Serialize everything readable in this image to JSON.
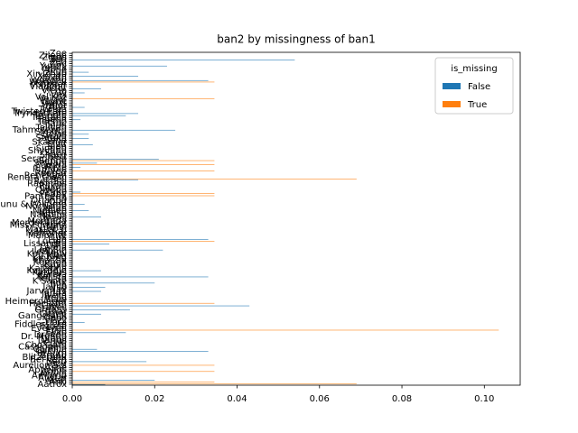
{
  "chart_data": {
    "type": "barh",
    "title": "ban2 by missingness of ban1",
    "categories": [
      "Aatrox",
      "Ahri",
      "Akali",
      "Alistar",
      "Amumu",
      "Anivia",
      "Annie",
      "Aphelios",
      "Ashe",
      "Aurelion Sol",
      "Azir",
      "Bard",
      "Bel'Veth",
      "Blitzcrank",
      "Brand",
      "Braum",
      "Caitlyn",
      "Camille",
      "Cassiopeia",
      "Cho'Gath",
      "Corki",
      "Darius",
      "Diana",
      "Dr. Mundo",
      "Draven",
      "Ekko",
      "Elise",
      "Evelynn",
      "Ezreal",
      "Fiddlesticks",
      "Fiora",
      "Fizz",
      "Galio",
      "Gangplank",
      "Garen",
      "Gnar",
      "Gragas",
      "Graves",
      "Gwen",
      "Hecarim",
      "Heimerdinger",
      "Illaoi",
      "Irelia",
      "Ivern",
      "Janna",
      "Jarvan IV",
      "Jax",
      "Jayce",
      "Jhin",
      "Jinx",
      "K'Sante",
      "Kai'Sa",
      "Kalista",
      "Karma",
      "Karthus",
      "Kassadin",
      "Katarina",
      "Kayle",
      "Kayn",
      "Kennen",
      "Kha'Zix",
      "Kindred",
      "Kled",
      "Kog'Maw",
      "LeBlanc",
      "Lee Sin",
      "Leona",
      "Lillia",
      "Lissandra",
      "Lucian",
      "Lulu",
      "Lux",
      "Malphite",
      "Malzahar",
      "Maokai",
      "Master Yi",
      "Milio",
      "Miss Fortune",
      "Mordekaiser",
      "Morgana",
      "Nami",
      "Nasus",
      "Nautilus",
      "Neeko",
      "Nidalee",
      "Nilah",
      "Nocturne",
      "Nunu & Willump",
      "Olaf",
      "Orianna",
      "Ornn",
      "Pantheon",
      "Poppy",
      "Pyke",
      "Qiyana",
      "Quinn",
      "Rakan",
      "Rammus",
      "Rek'Sai",
      "Rell",
      "Renata Glasc",
      "Renekton",
      "Rengar",
      "Riven",
      "Rumble",
      "Ryze",
      "Samira",
      "Sejuani",
      "Senna",
      "Seraphine",
      "Sett",
      "Shaco",
      "Shen",
      "Shyvana",
      "Singed",
      "Sion",
      "Sivir",
      "Skarner",
      "Sona",
      "Soraka",
      "Swain",
      "Sylas",
      "Syndra",
      "Tahm Kench",
      "Taliyah",
      "Talon",
      "Taric",
      "Teemo",
      "Thresh",
      "Tristana",
      "Trundle",
      "Tryndamere",
      "Twisted Fate",
      "Twitch",
      "Udyr",
      "Urgot",
      "Varus",
      "Vayne",
      "Veigar",
      "Vel'Koz",
      "Vex",
      "Vi",
      "Viego",
      "Viktor",
      "Vladimir",
      "Volibear",
      "Warwick",
      "Wukong",
      "Xayah",
      "Xerath",
      "Xin Zhao",
      "Yasuo",
      "Yone",
      "Yorick",
      "Yuumi",
      "Zac",
      "Zed",
      "Zeri",
      "Ziggs",
      "Zilean",
      "Zoe"
    ],
    "series": [
      {
        "name": "False",
        "color": "#1f77b4",
        "values": [
          0.008,
          0,
          0.02,
          0,
          0,
          0,
          0,
          0,
          0,
          0,
          0,
          0.018,
          0,
          0,
          0,
          0,
          0.033,
          0.006,
          0,
          0,
          0,
          0,
          0,
          0,
          0,
          0.013,
          0,
          0,
          0,
          0,
          0.003,
          0,
          0,
          0,
          0.007,
          0,
          0.014,
          0,
          0.043,
          0,
          0,
          0,
          0,
          0,
          0,
          0.007,
          0,
          0.008,
          0,
          0.02,
          0,
          0,
          0.033,
          0,
          0,
          0.007,
          0,
          0,
          0,
          0,
          0,
          0,
          0,
          0,
          0,
          0.022,
          0,
          0,
          0.009,
          0,
          0.033,
          0,
          0,
          0,
          0,
          0,
          0,
          0,
          0,
          0,
          0,
          0.007,
          0,
          0,
          0.004,
          0,
          0,
          0.003,
          0,
          0,
          0,
          0,
          0,
          0.002,
          0,
          0,
          0,
          0,
          0,
          0.016,
          0,
          0,
          0,
          0,
          0,
          0.002,
          0,
          0.006,
          0,
          0.021,
          0,
          0,
          0,
          0,
          0,
          0,
          0.005,
          0,
          0,
          0.004,
          0,
          0.004,
          0,
          0.025,
          0,
          0,
          0,
          0,
          0.002,
          0,
          0.013,
          0.016,
          0,
          0,
          0.003,
          0,
          0,
          0,
          0,
          0,
          0,
          0.003,
          0,
          0.007,
          0,
          0,
          0,
          0.033,
          0,
          0.016,
          0,
          0.004,
          0,
          0,
          0.023,
          0,
          0,
          0.054,
          0,
          0,
          0
        ]
      },
      {
        "name": "True",
        "color": "#ff7f0e",
        "values": [
          0.069,
          0.0345,
          0,
          0,
          0,
          0,
          0.0345,
          0,
          0,
          0.0345,
          0,
          0,
          0,
          0,
          0,
          0,
          0,
          0,
          0,
          0,
          0,
          0,
          0,
          0,
          0,
          0,
          0.1035,
          0,
          0,
          0,
          0,
          0,
          0,
          0,
          0,
          0,
          0,
          0,
          0,
          0.0345,
          0,
          0,
          0,
          0,
          0,
          0,
          0,
          0,
          0,
          0,
          0,
          0,
          0,
          0,
          0,
          0,
          0,
          0,
          0,
          0,
          0,
          0,
          0,
          0,
          0,
          0,
          0,
          0,
          0,
          0.0345,
          0,
          0,
          0,
          0,
          0,
          0,
          0,
          0,
          0,
          0,
          0,
          0,
          0,
          0,
          0,
          0,
          0,
          0,
          0,
          0,
          0,
          0.0345,
          0.0345,
          0,
          0,
          0,
          0,
          0,
          0,
          0.069,
          0,
          0,
          0,
          0.0345,
          0,
          0,
          0.0345,
          0,
          0.0345,
          0,
          0,
          0,
          0,
          0,
          0,
          0,
          0,
          0,
          0,
          0,
          0,
          0,
          0,
          0,
          0,
          0,
          0,
          0,
          0,
          0,
          0,
          0,
          0,
          0,
          0,
          0,
          0,
          0,
          0.0345,
          0,
          0,
          0,
          0,
          0,
          0,
          0,
          0.0345,
          0,
          0,
          0,
          0,
          0,
          0,
          0,
          0,
          0,
          0,
          0,
          0,
          0,
          0
        ]
      }
    ],
    "xlim": [
      0,
      0.1087
    ],
    "xticks": [
      {
        "value": 0,
        "label": "0.00"
      },
      {
        "value": 0.02,
        "label": "0.02"
      },
      {
        "value": 0.04,
        "label": "0.04"
      },
      {
        "value": 0.06,
        "label": "0.06"
      },
      {
        "value": 0.08,
        "label": "0.08"
      },
      {
        "value": 0.1,
        "label": "0.10"
      }
    ],
    "legend_title": "is_missing",
    "legend": "upper right",
    "grid": false
  }
}
